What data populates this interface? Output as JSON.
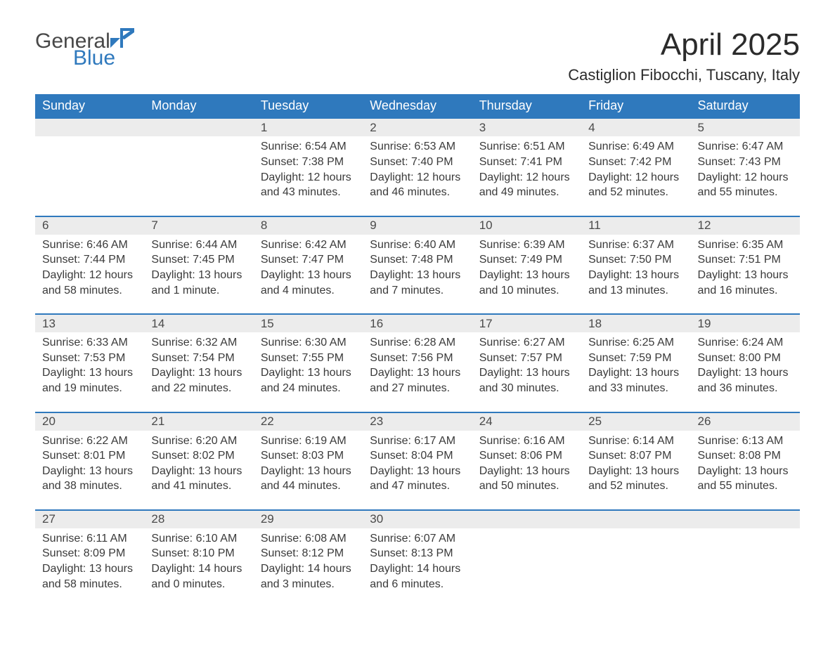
{
  "logo": {
    "text_general": "General",
    "text_blue": "Blue",
    "mark_color": "#2f79bd"
  },
  "title": "April 2025",
  "location": "Castiglion Fibocchi, Tuscany, Italy",
  "colors": {
    "header_bg": "#2f79bd",
    "header_text": "#ffffff",
    "date_row_bg": "#ececec",
    "date_row_border": "#2f79bd",
    "body_text": "#3a3a3a",
    "page_bg": "#ffffff"
  },
  "fonts": {
    "title_pt": 44,
    "location_pt": 22,
    "header_pt": 18,
    "daynum_pt": 17,
    "body_pt": 16
  },
  "day_headers": [
    "Sunday",
    "Monday",
    "Tuesday",
    "Wednesday",
    "Thursday",
    "Friday",
    "Saturday"
  ],
  "weeks": [
    {
      "dates": [
        "",
        "",
        "1",
        "2",
        "3",
        "4",
        "5"
      ],
      "cells": [
        null,
        null,
        {
          "sunrise": "Sunrise: 6:54 AM",
          "sunset": "Sunset: 7:38 PM",
          "daylight1": "Daylight: 12 hours",
          "daylight2": "and 43 minutes."
        },
        {
          "sunrise": "Sunrise: 6:53 AM",
          "sunset": "Sunset: 7:40 PM",
          "daylight1": "Daylight: 12 hours",
          "daylight2": "and 46 minutes."
        },
        {
          "sunrise": "Sunrise: 6:51 AM",
          "sunset": "Sunset: 7:41 PM",
          "daylight1": "Daylight: 12 hours",
          "daylight2": "and 49 minutes."
        },
        {
          "sunrise": "Sunrise: 6:49 AM",
          "sunset": "Sunset: 7:42 PM",
          "daylight1": "Daylight: 12 hours",
          "daylight2": "and 52 minutes."
        },
        {
          "sunrise": "Sunrise: 6:47 AM",
          "sunset": "Sunset: 7:43 PM",
          "daylight1": "Daylight: 12 hours",
          "daylight2": "and 55 minutes."
        }
      ]
    },
    {
      "dates": [
        "6",
        "7",
        "8",
        "9",
        "10",
        "11",
        "12"
      ],
      "cells": [
        {
          "sunrise": "Sunrise: 6:46 AM",
          "sunset": "Sunset: 7:44 PM",
          "daylight1": "Daylight: 12 hours",
          "daylight2": "and 58 minutes."
        },
        {
          "sunrise": "Sunrise: 6:44 AM",
          "sunset": "Sunset: 7:45 PM",
          "daylight1": "Daylight: 13 hours",
          "daylight2": "and 1 minute."
        },
        {
          "sunrise": "Sunrise: 6:42 AM",
          "sunset": "Sunset: 7:47 PM",
          "daylight1": "Daylight: 13 hours",
          "daylight2": "and 4 minutes."
        },
        {
          "sunrise": "Sunrise: 6:40 AM",
          "sunset": "Sunset: 7:48 PM",
          "daylight1": "Daylight: 13 hours",
          "daylight2": "and 7 minutes."
        },
        {
          "sunrise": "Sunrise: 6:39 AM",
          "sunset": "Sunset: 7:49 PM",
          "daylight1": "Daylight: 13 hours",
          "daylight2": "and 10 minutes."
        },
        {
          "sunrise": "Sunrise: 6:37 AM",
          "sunset": "Sunset: 7:50 PM",
          "daylight1": "Daylight: 13 hours",
          "daylight2": "and 13 minutes."
        },
        {
          "sunrise": "Sunrise: 6:35 AM",
          "sunset": "Sunset: 7:51 PM",
          "daylight1": "Daylight: 13 hours",
          "daylight2": "and 16 minutes."
        }
      ]
    },
    {
      "dates": [
        "13",
        "14",
        "15",
        "16",
        "17",
        "18",
        "19"
      ],
      "cells": [
        {
          "sunrise": "Sunrise: 6:33 AM",
          "sunset": "Sunset: 7:53 PM",
          "daylight1": "Daylight: 13 hours",
          "daylight2": "and 19 minutes."
        },
        {
          "sunrise": "Sunrise: 6:32 AM",
          "sunset": "Sunset: 7:54 PM",
          "daylight1": "Daylight: 13 hours",
          "daylight2": "and 22 minutes."
        },
        {
          "sunrise": "Sunrise: 6:30 AM",
          "sunset": "Sunset: 7:55 PM",
          "daylight1": "Daylight: 13 hours",
          "daylight2": "and 24 minutes."
        },
        {
          "sunrise": "Sunrise: 6:28 AM",
          "sunset": "Sunset: 7:56 PM",
          "daylight1": "Daylight: 13 hours",
          "daylight2": "and 27 minutes."
        },
        {
          "sunrise": "Sunrise: 6:27 AM",
          "sunset": "Sunset: 7:57 PM",
          "daylight1": "Daylight: 13 hours",
          "daylight2": "and 30 minutes."
        },
        {
          "sunrise": "Sunrise: 6:25 AM",
          "sunset": "Sunset: 7:59 PM",
          "daylight1": "Daylight: 13 hours",
          "daylight2": "and 33 minutes."
        },
        {
          "sunrise": "Sunrise: 6:24 AM",
          "sunset": "Sunset: 8:00 PM",
          "daylight1": "Daylight: 13 hours",
          "daylight2": "and 36 minutes."
        }
      ]
    },
    {
      "dates": [
        "20",
        "21",
        "22",
        "23",
        "24",
        "25",
        "26"
      ],
      "cells": [
        {
          "sunrise": "Sunrise: 6:22 AM",
          "sunset": "Sunset: 8:01 PM",
          "daylight1": "Daylight: 13 hours",
          "daylight2": "and 38 minutes."
        },
        {
          "sunrise": "Sunrise: 6:20 AM",
          "sunset": "Sunset: 8:02 PM",
          "daylight1": "Daylight: 13 hours",
          "daylight2": "and 41 minutes."
        },
        {
          "sunrise": "Sunrise: 6:19 AM",
          "sunset": "Sunset: 8:03 PM",
          "daylight1": "Daylight: 13 hours",
          "daylight2": "and 44 minutes."
        },
        {
          "sunrise": "Sunrise: 6:17 AM",
          "sunset": "Sunset: 8:04 PM",
          "daylight1": "Daylight: 13 hours",
          "daylight2": "and 47 minutes."
        },
        {
          "sunrise": "Sunrise: 6:16 AM",
          "sunset": "Sunset: 8:06 PM",
          "daylight1": "Daylight: 13 hours",
          "daylight2": "and 50 minutes."
        },
        {
          "sunrise": "Sunrise: 6:14 AM",
          "sunset": "Sunset: 8:07 PM",
          "daylight1": "Daylight: 13 hours",
          "daylight2": "and 52 minutes."
        },
        {
          "sunrise": "Sunrise: 6:13 AM",
          "sunset": "Sunset: 8:08 PM",
          "daylight1": "Daylight: 13 hours",
          "daylight2": "and 55 minutes."
        }
      ]
    },
    {
      "dates": [
        "27",
        "28",
        "29",
        "30",
        "",
        "",
        ""
      ],
      "cells": [
        {
          "sunrise": "Sunrise: 6:11 AM",
          "sunset": "Sunset: 8:09 PM",
          "daylight1": "Daylight: 13 hours",
          "daylight2": "and 58 minutes."
        },
        {
          "sunrise": "Sunrise: 6:10 AM",
          "sunset": "Sunset: 8:10 PM",
          "daylight1": "Daylight: 14 hours",
          "daylight2": "and 0 minutes."
        },
        {
          "sunrise": "Sunrise: 6:08 AM",
          "sunset": "Sunset: 8:12 PM",
          "daylight1": "Daylight: 14 hours",
          "daylight2": "and 3 minutes."
        },
        {
          "sunrise": "Sunrise: 6:07 AM",
          "sunset": "Sunset: 8:13 PM",
          "daylight1": "Daylight: 14 hours",
          "daylight2": "and 6 minutes."
        },
        null,
        null,
        null
      ]
    }
  ]
}
